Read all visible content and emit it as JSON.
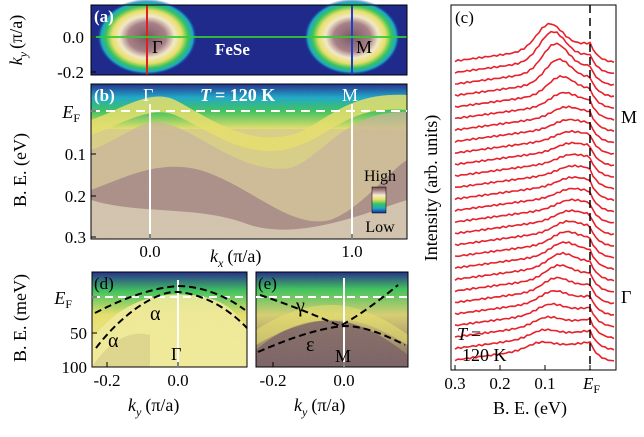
{
  "figure": {
    "panels": {
      "a": {
        "label": "(a)",
        "material": "FeSe",
        "gamma": "Γ",
        "m": "M",
        "y_ticks": [
          "0.0",
          "-0.2"
        ],
        "y_label_var": "k",
        "y_label_sub": "y",
        "y_label_unit": "(π/a)",
        "colors": {
          "bg": "#1f2a8a",
          "ring_outer": "#1aa8c9",
          "ring_mid": "#e8e06a",
          "ring_core": "#8a6a70",
          "gamma_line": "#e02020",
          "m_line": "#1a3fd0",
          "cut_line": "#33cc33"
        }
      },
      "b": {
        "label": "(b)",
        "gamma": "Γ",
        "m": "M",
        "temperature_var": "T",
        "temperature_value": "= 120 K",
        "y_label": "B. E. (eV)",
        "y_ticks": [
          "E",
          "0.1",
          "0.2",
          "0.3"
        ],
        "ef_sub": "F",
        "x_ticks": [
          "0.0",
          "1.0"
        ],
        "x_label_var": "k",
        "x_label_sub": "x",
        "x_label_unit": "(π/a)",
        "colorbar_high": "High",
        "colorbar_low": "Low",
        "colormap": [
          "#1f2a8a",
          "#1aa8c9",
          "#3cc35a",
          "#e8e06a",
          "#f4ecd0",
          "#b88e90",
          "#6b4e55"
        ]
      },
      "c": {
        "label": "(c)",
        "y_label": "Intensity (arb. units)",
        "x_label": "B. E. (eV)",
        "x_ticks": [
          "0.3",
          "0.2",
          "0.1",
          "E"
        ],
        "ef_sub": "F",
        "m": "M",
        "gamma": "Γ",
        "temperature_var": "T",
        "temperature_eq": "=",
        "temperature_value": "120 K",
        "curve_color": "#e8202a",
        "curve_count": 27
      },
      "d": {
        "label": "(d)",
        "alpha": "α",
        "alpha2": "α",
        "gamma": "Γ",
        "y_label": "B. E. (meV)",
        "y_ticks": [
          "E",
          "50",
          "100"
        ],
        "ef_sub": "F",
        "x_ticks": [
          "-0.2",
          "0.0"
        ],
        "x_label_var": "k",
        "x_label_sub": "y",
        "x_label_unit": "(π/a)"
      },
      "e": {
        "label": "(e)",
        "gamma_band": "γ",
        "epsilon": "ε",
        "m": "M",
        "x_ticks": [
          "-0.2",
          "0.0"
        ],
        "x_label_var": "k",
        "x_label_sub": "y",
        "x_label_unit": "(π/a)"
      }
    }
  }
}
